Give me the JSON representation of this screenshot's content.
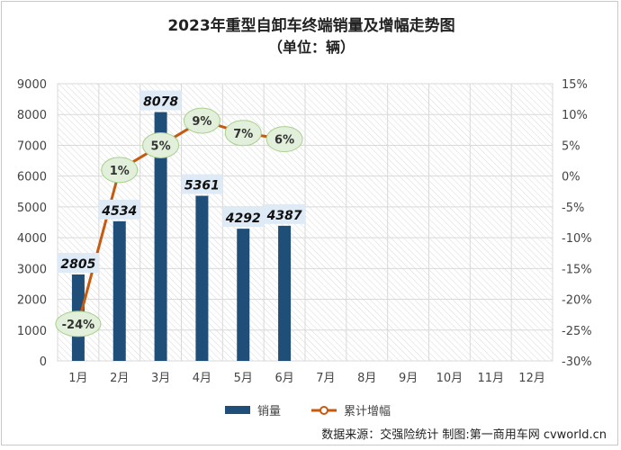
{
  "chart_data": {
    "type": "bar+line",
    "title": "2023年重型自卸车终端销量及增幅走势图",
    "subtitle": "（单位：辆）",
    "categories": [
      "1月",
      "2月",
      "3月",
      "4月",
      "5月",
      "6月",
      "7月",
      "8月",
      "9月",
      "10月",
      "11月",
      "12月"
    ],
    "series": [
      {
        "name": "销量",
        "type": "bar",
        "axis": "left",
        "color": "#1f4e79",
        "values": [
          2805,
          4534,
          8078,
          5361,
          4292,
          4387,
          null,
          null,
          null,
          null,
          null,
          null
        ],
        "labels": [
          "2805",
          "4534",
          "8078",
          "5361",
          "4292",
          "4387"
        ]
      },
      {
        "name": "累计增幅",
        "type": "line",
        "axis": "right",
        "color": "#c55a11",
        "values": [
          -24,
          1,
          5,
          9,
          7,
          6,
          null,
          null,
          null,
          null,
          null,
          null
        ],
        "labels": [
          "-24%",
          "1%",
          "5%",
          "9%",
          "7%",
          "6%"
        ]
      }
    ],
    "y_left": {
      "min": 0,
      "max": 9000,
      "step": 1000,
      "ticks": [
        "0",
        "1000",
        "2000",
        "3000",
        "4000",
        "5000",
        "6000",
        "7000",
        "8000",
        "9000"
      ]
    },
    "y_right": {
      "min": -30,
      "max": 15,
      "step": 5,
      "ticks": [
        "-30%",
        "-25%",
        "-20%",
        "-15%",
        "-10%",
        "-5%",
        "0%",
        "5%",
        "10%",
        "15%"
      ]
    },
    "grid": true,
    "legend_position": "bottom",
    "source": "数据来源：交强险统计 制图:第一商用车网 cvworld.cn"
  },
  "colors": {
    "bar": "#1f4e79",
    "line": "#c55a11",
    "bubble_fill": "#e2efda",
    "bubble_stroke": "#a9d18e",
    "bar_label_bg": "#deebf7"
  }
}
